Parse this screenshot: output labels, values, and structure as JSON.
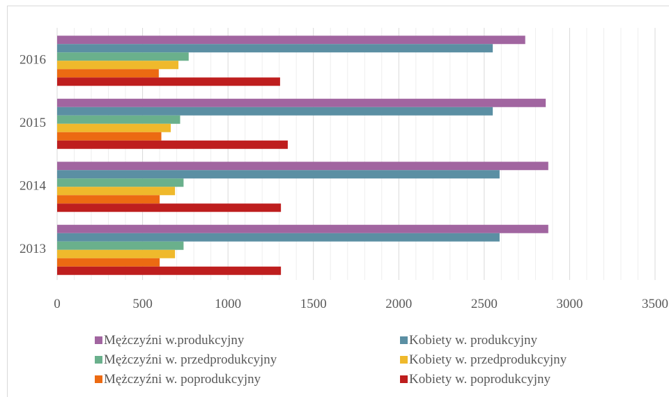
{
  "chart_data": {
    "type": "bar",
    "orientation": "horizontal",
    "categories": [
      "2013",
      "2014",
      "2015",
      "2016"
    ],
    "series": [
      {
        "name": "Mężczyźni w.produkcyjny",
        "color": "#A165A0",
        "values": [
          2875,
          2875,
          2860,
          2740
        ]
      },
      {
        "name": "Kobiety w. produkcyjny",
        "color": "#5B8FA3",
        "values": [
          2590,
          2590,
          2550,
          2550
        ]
      },
      {
        "name": "Mężczyźni w. przedprodukcyjny",
        "color": "#6AB08C",
        "values": [
          740,
          740,
          720,
          770
        ]
      },
      {
        "name": "Kobiety w. przedprodukcyjny",
        "color": "#EFB92C",
        "values": [
          690,
          690,
          665,
          710
        ]
      },
      {
        "name": "Mężczyźni w. poprodukcyjny",
        "color": "#EC6A12",
        "values": [
          600,
          600,
          610,
          595
        ]
      },
      {
        "name": "Kobiety w. poprodukcyjny",
        "color": "#BE1E1E",
        "values": [
          1310,
          1310,
          1350,
          1305
        ]
      }
    ],
    "xlim": [
      0,
      3500
    ],
    "xticks": [
      "0",
      "500",
      "1000",
      "1500",
      "2000",
      "2500",
      "3000",
      "3500"
    ],
    "grid": true,
    "legend_position": "bottom",
    "title": "",
    "xlabel": "",
    "ylabel": ""
  }
}
